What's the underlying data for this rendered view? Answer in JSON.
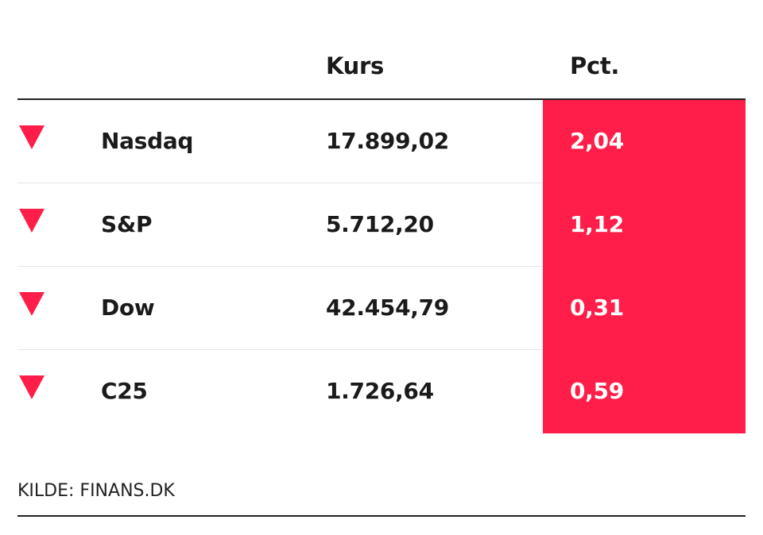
{
  "chart_data": {
    "type": "table",
    "columns": [
      "",
      "",
      "Kurs",
      "Pct."
    ],
    "rows": [
      {
        "direction": "down",
        "name": "Nasdaq",
        "kurs": "17.899,02",
        "pct": "2,04"
      },
      {
        "direction": "down",
        "name": "S&P",
        "kurs": "5.712,20",
        "pct": "1,12"
      },
      {
        "direction": "down",
        "name": "Dow",
        "kurs": "42.454,79",
        "pct": "0,31"
      },
      {
        "direction": "down",
        "name": "C25",
        "kurs": "1.726,64",
        "pct": "0,59"
      }
    ],
    "source": "KILDE: FINANS.DK",
    "colors": {
      "down": "#ff1e4a",
      "pct_background": "#ff1e4a"
    }
  }
}
